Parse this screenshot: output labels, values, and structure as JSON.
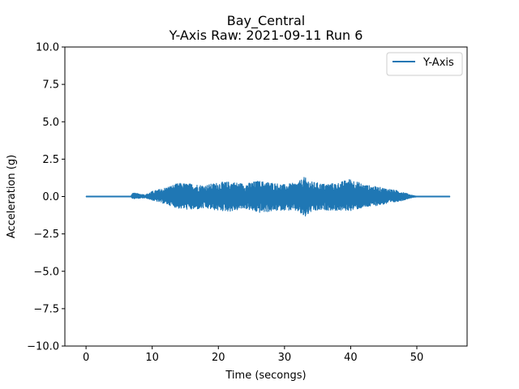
{
  "chart_data": {
    "type": "line",
    "title": "Bay_Central",
    "subtitle": "Y-Axis Raw: 2021-09-11 Run 6",
    "xlabel": "Time (secongs)",
    "ylabel": "Acceleration (g)",
    "xlim": [
      -3.2,
      57.6
    ],
    "ylim": [
      -10.0,
      10.0
    ],
    "x_ticks": [
      0,
      10,
      20,
      30,
      40,
      50
    ],
    "x_tick_labels": [
      "0",
      "10",
      "20",
      "30",
      "40",
      "50"
    ],
    "y_ticks": [
      10.0,
      7.5,
      5.0,
      2.5,
      0.0,
      -2.5,
      -5.0,
      -7.5,
      -10.0
    ],
    "y_tick_labels": [
      "10.0",
      "7.5",
      "5.0",
      "2.5",
      "0.0",
      "−2.5",
      "−5.0",
      "−7.5",
      "−10.0"
    ],
    "grid": false,
    "legend_position": "top-right",
    "series": [
      {
        "name": "Y-Axis",
        "color": "#1f77b4",
        "x_range": [
          0,
          55
        ],
        "envelope": {
          "t": [
            0,
            6.8,
            7.0,
            9.0,
            10,
            12,
            14,
            16,
            18,
            20,
            22,
            24,
            26,
            28,
            30,
            32,
            33,
            34,
            36,
            38,
            40,
            42,
            44,
            46,
            48,
            49,
            50,
            55
          ],
          "upper": [
            0.02,
            0.02,
            0.25,
            0.12,
            0.35,
            0.6,
            0.9,
            0.85,
            0.75,
            0.95,
            1.0,
            0.85,
            1.05,
            0.95,
            0.8,
            0.95,
            1.3,
            1.0,
            0.85,
            0.9,
            1.2,
            0.8,
            0.65,
            0.5,
            0.3,
            0.12,
            0.02,
            0.02
          ],
          "lower": [
            -0.02,
            -0.02,
            -0.15,
            -0.1,
            -0.25,
            -0.5,
            -0.8,
            -0.9,
            -0.8,
            -0.95,
            -1.0,
            -0.8,
            -1.1,
            -1.0,
            -0.9,
            -1.0,
            -1.45,
            -1.05,
            -0.9,
            -0.95,
            -0.95,
            -0.75,
            -0.6,
            -0.45,
            -0.25,
            -0.1,
            -0.02,
            -0.02
          ]
        }
      }
    ]
  }
}
